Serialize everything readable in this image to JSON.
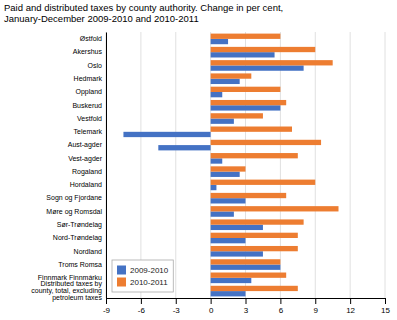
{
  "chart_data": {
    "type": "bar",
    "orientation": "horizontal",
    "title": "Paid and distributed taxes by county authority. Change in per cent,\nJanuary-December 2009-2010 and 2010-2011",
    "categories": [
      "Østfold",
      "Akershus",
      "Oslo",
      "Hedmark",
      "Oppland",
      "Buskerud",
      "Vestfold",
      "Telemark",
      "Aust-agder",
      "Vest-agder",
      "Rogaland",
      "Hordaland",
      "Sogn og Fjordane",
      "Møre og Romsdal",
      "Sør-Trøndelag",
      "Nord-Trøndelag",
      "Nordland",
      "Troms Romsa",
      "Finnmark Finnmárku",
      "Distributed taxes by\ncounty, total, excluding\npetroleum taxes"
    ],
    "series": [
      {
        "name": "2009-2010",
        "color": "#4472C4",
        "values": [
          1.5,
          5.5,
          8.0,
          2.5,
          1.0,
          6.0,
          2.0,
          -7.5,
          -4.5,
          1.0,
          2.5,
          0.5,
          3.0,
          2.0,
          4.5,
          3.0,
          4.5,
          6.0,
          3.5,
          3.0
        ]
      },
      {
        "name": "2010-2011",
        "color": "#ED7D31",
        "values": [
          6.0,
          9.0,
          10.5,
          3.5,
          6.0,
          6.5,
          4.5,
          7.0,
          9.5,
          7.5,
          3.0,
          9.0,
          6.5,
          11.0,
          8.0,
          7.5,
          7.5,
          6.0,
          6.5,
          7.5
        ]
      }
    ],
    "xlim": [
      -9,
      15
    ],
    "xticks": [
      -9,
      -6,
      -3,
      0,
      3,
      6,
      9,
      12,
      15
    ],
    "grid": true,
    "legend": "lower left"
  }
}
